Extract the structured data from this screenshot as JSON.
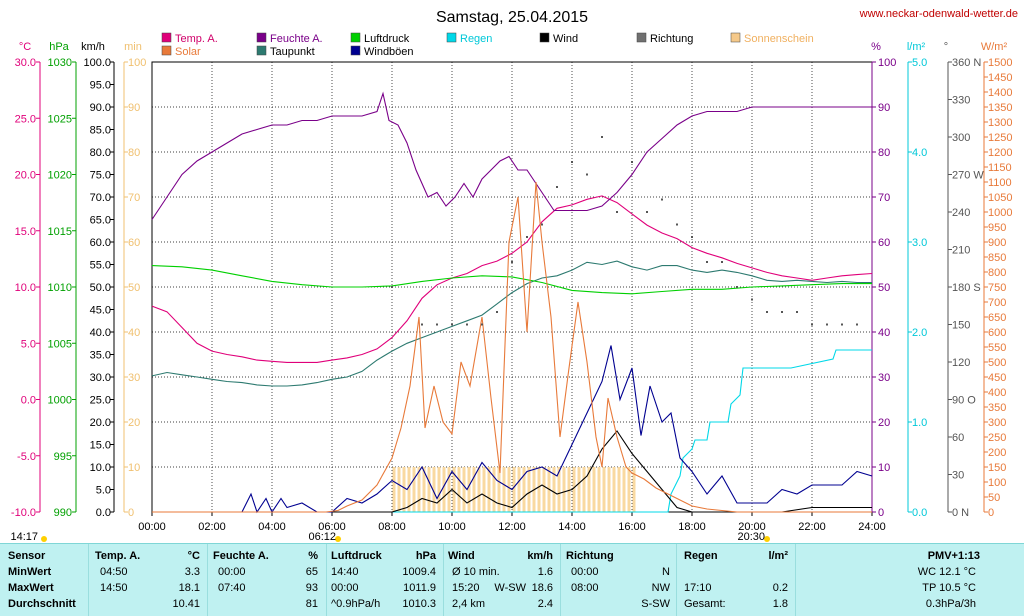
{
  "page": {
    "title": "Samstag, 25.04.2015",
    "site": "www.neckar-odenwald-wetter.de"
  },
  "colors": {
    "temp": "#e0007a",
    "humidity": "#7a0089",
    "pressure": "#00d000",
    "rain": "#00d8e8",
    "wind": "#000000",
    "direction": "#555555",
    "sunshine": "#f0c070",
    "solar": "#e87a3a",
    "dewpoint": "#2d7a70",
    "gusts": "#000090",
    "grid": "#000000"
  },
  "legend": [
    {
      "key": "temp",
      "label": "Temp. A.",
      "color": "#e0007a"
    },
    {
      "key": "humidity",
      "label": "Feuchte A.",
      "color": "#7a0089"
    },
    {
      "key": "pressure",
      "label": "Luftdruck",
      "color": "#00d000"
    },
    {
      "key": "rain",
      "label": "Regen",
      "color": "#00d8e8"
    },
    {
      "key": "wind",
      "label": "Wind",
      "color": "#000000"
    },
    {
      "key": "direction",
      "label": "Richtung",
      "color": "#707070"
    },
    {
      "key": "sunshine",
      "label": "Sonnenschein",
      "color": "#f5c98a"
    },
    {
      "key": "solar",
      "label": "Solar",
      "color": "#e87a3a"
    },
    {
      "key": "dewpoint",
      "label": "Taupunkt",
      "color": "#2d7a70"
    },
    {
      "key": "gusts",
      "label": "Windböen",
      "color": "#000090"
    }
  ],
  "chart_data": {
    "type": "line",
    "title": "Samstag, 25.04.2015",
    "x_ticks": [
      "00:00",
      "02:00",
      "04:00",
      "06:00",
      "08:00",
      "10:00",
      "12:00",
      "14:00",
      "16:00",
      "18:00",
      "20:00",
      "22:00",
      "24:00"
    ],
    "xlim_hours": [
      0,
      24
    ],
    "grid": true,
    "axes": {
      "temp": {
        "unit": "°C",
        "range": [
          -10,
          30
        ],
        "ticks": [
          "30.0",
          "25.0",
          "20.0",
          "15.0",
          "10.0",
          "5.0",
          "0.0",
          "-5.0",
          "-10.0"
        ]
      },
      "pressure": {
        "unit": "hPa",
        "range": [
          990,
          1030
        ],
        "ticks": [
          "1030",
          "1025",
          "1020",
          "1015",
          "1010",
          "1005",
          "1000",
          "995",
          "990"
        ]
      },
      "wind": {
        "unit": "km/h",
        "range": [
          0,
          100
        ],
        "ticks": [
          "100.0",
          "95.0",
          "90.0",
          "85.0",
          "80.0",
          "75.0",
          "70.0",
          "65.0",
          "60.0",
          "55.0",
          "50.0",
          "45.0",
          "40.0",
          "35.0",
          "30.0",
          "25.0",
          "20.0",
          "15.0",
          "10.0",
          "5.0",
          "0.0"
        ]
      },
      "sunshine_min": {
        "unit": "min",
        "range": [
          0,
          100
        ],
        "ticks": [
          "100",
          "90",
          "80",
          "70",
          "60",
          "50",
          "40",
          "30",
          "20",
          "10",
          "0"
        ]
      },
      "humidity": {
        "unit": "%",
        "range": [
          0,
          100
        ],
        "ticks": [
          "100",
          "90",
          "80",
          "70",
          "60",
          "50",
          "40",
          "30",
          "20",
          "10",
          "0"
        ]
      },
      "rain": {
        "unit": "l/m²",
        "range": [
          0,
          5
        ],
        "ticks": [
          "5.0",
          "4.0",
          "3.0",
          "2.0",
          "1.0",
          "0.0"
        ]
      },
      "direction": {
        "unit": "°",
        "range": [
          0,
          360
        ],
        "ticks": [
          "360 N",
          "330",
          "300",
          "270 W",
          "240",
          "210",
          "180 S",
          "150",
          "120",
          "90 O",
          "60",
          "30",
          "0 N"
        ]
      },
      "solar": {
        "unit": "W/m²",
        "range": [
          0,
          1500
        ],
        "ticks": [
          "1500",
          "1450",
          "1400",
          "1350",
          "1300",
          "1250",
          "1200",
          "1150",
          "1100",
          "1050",
          "1000",
          "950",
          "900",
          "850",
          "800",
          "750",
          "700",
          "650",
          "600",
          "550",
          "500",
          "450",
          "400",
          "350",
          "300",
          "250",
          "200",
          "150",
          "100",
          "50",
          "0"
        ]
      }
    },
    "sun": {
      "sunrise": "06:12",
      "sunset": "20:30",
      "moon": "14:17"
    },
    "series": [
      {
        "name": "Temp. A.",
        "axis": "temp",
        "x": [
          0,
          0.5,
          1,
          1.5,
          2,
          2.5,
          3,
          3.5,
          4,
          4.5,
          5,
          5.5,
          6,
          6.5,
          7,
          7.5,
          8,
          8.5,
          9,
          9.5,
          10,
          10.5,
          11,
          11.5,
          12,
          12.5,
          13,
          13.5,
          14,
          14.5,
          15,
          15.5,
          16,
          16.5,
          17,
          17.5,
          18,
          18.5,
          19,
          19.5,
          20,
          20.5,
          21,
          21.5,
          22,
          22.5,
          23,
          23.5,
          24
        ],
        "y": [
          8.3,
          7.8,
          6.4,
          5.0,
          4.3,
          4.0,
          3.8,
          3.5,
          3.4,
          3.3,
          3.3,
          3.3,
          3.5,
          3.7,
          4.0,
          4.5,
          5.5,
          7.0,
          9.0,
          10.2,
          10.8,
          11.2,
          11.9,
          12.3,
          13.0,
          14.0,
          15.8,
          17.0,
          17.3,
          17.8,
          18.1,
          17.5,
          16.5,
          15.5,
          14.8,
          14.3,
          13.5,
          13.0,
          12.6,
          12.1,
          11.7,
          11.3,
          11.0,
          10.8,
          10.6,
          10.8,
          11.0,
          11.1,
          11.2
        ]
      },
      {
        "name": "Feuchte A.",
        "axis": "humidity",
        "x": [
          0,
          0.5,
          1,
          1.5,
          2,
          2.5,
          3,
          3.5,
          4,
          4.5,
          5,
          5.5,
          6,
          6.5,
          7,
          7.5,
          7.7,
          7.9,
          8.2,
          8.5,
          8.8,
          9.2,
          9.5,
          9.8,
          10.1,
          10.4,
          10.7,
          11,
          11.3,
          11.6,
          11.9,
          12.2,
          12.5,
          12.8,
          13.1,
          13.4,
          13.7,
          14,
          14.5,
          15,
          15.5,
          16,
          16.5,
          17,
          17.5,
          18,
          18.5,
          19,
          19.5,
          20,
          21,
          22,
          23,
          24
        ],
        "y": [
          65,
          70,
          75,
          78,
          80,
          82,
          84,
          85,
          86,
          86,
          87,
          87,
          88,
          88,
          88,
          89,
          93,
          87,
          86,
          82,
          76,
          70,
          71,
          68,
          70,
          73,
          70,
          74,
          76,
          78,
          79,
          76,
          76,
          73,
          70,
          67,
          67,
          67,
          67,
          68,
          71,
          75,
          80,
          83,
          86,
          88,
          89,
          89,
          89,
          90,
          90,
          90,
          90,
          90
        ]
      },
      {
        "name": "Taupunkt",
        "axis": "temp",
        "x": [
          0,
          0.5,
          1,
          1.5,
          2,
          2.5,
          3,
          3.5,
          4,
          4.5,
          5,
          5.5,
          6,
          6.5,
          7,
          7.5,
          8,
          8.5,
          9,
          9.5,
          10,
          10.5,
          11,
          11.5,
          12,
          12.5,
          13,
          13.5,
          14,
          14.5,
          15,
          15.5,
          16,
          16.5,
          17,
          17.5,
          18,
          18.5,
          19,
          19.5,
          20,
          20.5,
          21,
          21.5,
          22,
          22.5,
          23,
          23.5,
          24
        ],
        "y": [
          2.1,
          2.4,
          2.2,
          2.0,
          1.8,
          1.6,
          1.5,
          1.3,
          1.2,
          1.2,
          1.3,
          1.5,
          1.8,
          2.0,
          2.5,
          3.5,
          4.3,
          5.0,
          5.5,
          6.0,
          6.5,
          7.0,
          7.5,
          8.5,
          9.5,
          10.3,
          10.8,
          11.0,
          11.5,
          12.2,
          12.0,
          12.3,
          11.8,
          11.5,
          11.9,
          11.9,
          11.5,
          11.3,
          11.5,
          11.3,
          11.0,
          10.6,
          10.5,
          10.6,
          10.5,
          10.4,
          10.5,
          10.4,
          10.4
        ]
      },
      {
        "name": "Luftdruck",
        "axis": "pressure",
        "x": [
          0,
          1,
          2,
          3,
          4,
          5,
          6,
          7,
          8,
          9,
          10,
          11,
          12,
          13,
          14,
          15,
          16,
          17,
          18,
          19,
          20,
          21,
          22,
          23,
          24
        ],
        "y": [
          1011.9,
          1011.8,
          1011.5,
          1011.0,
          1010.5,
          1010.2,
          1010.0,
          1010.0,
          1010.1,
          1010.5,
          1010.8,
          1011.0,
          1010.9,
          1010.4,
          1009.7,
          1009.5,
          1009.4,
          1009.6,
          1009.8,
          1009.8,
          1010.0,
          1010.1,
          1010.2,
          1010.3,
          1010.3
        ]
      },
      {
        "name": "Regen",
        "axis": "rain",
        "x": [
          0,
          16.8,
          17.2,
          17.3,
          17.6,
          17.7,
          18.0,
          18.1,
          18.5,
          18.6,
          19.2,
          19.3,
          19.6,
          19.7,
          21.2,
          21.3,
          22.7,
          22.8,
          24
        ],
        "y": [
          0,
          0,
          0,
          0.2,
          0.4,
          0.6,
          0.7,
          0.8,
          0.8,
          1.0,
          1.0,
          1.2,
          1.3,
          1.6,
          1.6,
          1.6,
          1.7,
          1.8,
          1.8
        ]
      },
      {
        "name": "Wind",
        "axis": "wind",
        "x": [
          0,
          6,
          6.5,
          7,
          7.5,
          8,
          8.5,
          9,
          9.5,
          10,
          10.5,
          11,
          11.5,
          12,
          12.5,
          13,
          13.5,
          14,
          14.5,
          15,
          15.5,
          16,
          16.5,
          17,
          17.5,
          18,
          18.5,
          19,
          19.5,
          20,
          20.5,
          21,
          22,
          23,
          24
        ],
        "y": [
          0,
          0,
          0,
          0,
          0,
          0,
          1,
          3,
          2,
          5,
          2,
          4,
          2,
          1,
          4,
          6,
          4,
          5,
          8,
          14,
          18,
          13,
          9,
          5,
          1,
          0,
          0,
          0,
          0,
          0,
          0,
          0,
          1,
          1,
          1
        ]
      },
      {
        "name": "Windböen",
        "axis": "wind",
        "x": [
          0,
          3,
          3.3,
          3.5,
          3.8,
          4,
          4.3,
          4.5,
          5,
          5.5,
          6,
          6.5,
          7,
          7.5,
          8,
          8.5,
          9,
          9.5,
          10,
          10.5,
          11,
          11.5,
          12,
          12.5,
          13,
          13.5,
          14,
          14.5,
          15,
          15.3,
          15.6,
          16,
          16.3,
          16.6,
          17,
          17.3,
          17.6,
          18,
          18.5,
          19,
          19.5,
          20,
          20.5,
          21,
          21.5,
          22,
          22.5,
          23,
          23.5,
          24
        ],
        "y": [
          0,
          0,
          4,
          0,
          3,
          0,
          3,
          1,
          2,
          0,
          0,
          3,
          2,
          4,
          7,
          5,
          10,
          3,
          9,
          5,
          11,
          7,
          5,
          9,
          10,
          8,
          15,
          22,
          29,
          37,
          25,
          32,
          17,
          28,
          20,
          22,
          12,
          9,
          4,
          8,
          2,
          2,
          2,
          5,
          4,
          6,
          6,
          6,
          9,
          8
        ]
      },
      {
        "name": "Solar",
        "axis": "solar",
        "x": [
          0,
          5.8,
          6.2,
          6.5,
          7,
          7.5,
          8,
          8.3,
          8.6,
          8.9,
          9.1,
          9.4,
          9.7,
          10,
          10.3,
          10.6,
          11,
          11.3,
          11.6,
          11.9,
          12.2,
          12.5,
          12.8,
          13,
          13.3,
          13.6,
          13.9,
          14.2,
          14.5,
          14.8,
          15,
          15.2,
          15.5,
          15.8,
          16,
          16.4,
          16.8,
          17.2,
          17.6,
          18,
          18.5,
          19,
          19.5,
          20,
          20.5,
          21,
          24
        ],
        "y": [
          0,
          0,
          5,
          20,
          40,
          90,
          180,
          280,
          420,
          650,
          280,
          420,
          300,
          260,
          500,
          420,
          650,
          380,
          130,
          900,
          1050,
          600,
          1100,
          900,
          650,
          250,
          480,
          700,
          500,
          250,
          150,
          380,
          250,
          150,
          130,
          110,
          80,
          60,
          40,
          20,
          10,
          5,
          0,
          0,
          0,
          0,
          0
        ]
      },
      {
        "name": "Richtung",
        "axis": "direction",
        "x": [
          8,
          9,
          9.5,
          10,
          10.5,
          11,
          11.5,
          12,
          12.5,
          13,
          13.5,
          14,
          14.5,
          15,
          15.5,
          16,
          16.5,
          17,
          17.5,
          18,
          18.5,
          19,
          19.5,
          20,
          20.5,
          21,
          21.5,
          22,
          22.5,
          23,
          23.5
        ],
        "y": [
          180,
          150,
          150,
          150,
          150,
          150,
          160,
          200,
          220,
          230,
          260,
          280,
          270,
          300,
          240,
          280,
          240,
          250,
          230,
          220,
          200,
          200,
          180,
          170,
          160,
          160,
          160,
          150,
          150,
          150,
          150
        ]
      }
    ],
    "sunshine_bars": {
      "axis": "sunshine_min",
      "from_hour": 8.0,
      "to_hour": 16.0,
      "value": 10
    }
  },
  "stats": {
    "headers": [
      {
        "title": "Sensor"
      },
      {
        "title": "Temp. A.",
        "unit": "°C"
      },
      {
        "title": "Feuchte A.",
        "unit": "%"
      },
      {
        "title": "Luftdruck",
        "unit": "hPa"
      },
      {
        "title": "Wind",
        "unit": "km/h"
      },
      {
        "title": "Richtung"
      },
      {
        "title": "Regen",
        "unit": "l/m²"
      },
      {
        "title": "PMV+1:13"
      }
    ],
    "rows": [
      {
        "label": "MinWert",
        "temp_time": "04:50",
        "temp_val": "3.3",
        "hum_time": "00:00",
        "hum_val": "65",
        "press_time": "14:40",
        "press_val": "1009.4",
        "wind_time": "Ø 10 min.",
        "wind_val": "1.6",
        "dir_time": "00:00",
        "dir_val": "N",
        "rain_time": "",
        "rain_val": "",
        "pmv": "WC 12.1 °C"
      },
      {
        "label": "MaxWert",
        "temp_time": "14:50",
        "temp_val": "18.1",
        "hum_time": "07:40",
        "hum_val": "93",
        "press_time": "00:00",
        "press_val": "1011.9",
        "wind_time": "15:20",
        "wind_dir": "W-SW",
        "wind_val": "18.6",
        "dir_time": "08:00",
        "dir_val": "NW",
        "rain_time": "17:10",
        "rain_val": "0.2",
        "pmv": "TP 10.5 °C"
      },
      {
        "label": "Durchschnitt",
        "temp_time": "",
        "temp_val": "10.41",
        "hum_time": "",
        "hum_val": "81",
        "press_time": "^0.9hPa/h",
        "press_val": "1010.3",
        "wind_time": "2,4 km",
        "wind_val": "2.4",
        "dir_time": "",
        "dir_val": "S-SW",
        "rain_time": "Gesamt:",
        "rain_val": "1.8",
        "pmv": "0.3hPa/3h"
      }
    ]
  }
}
